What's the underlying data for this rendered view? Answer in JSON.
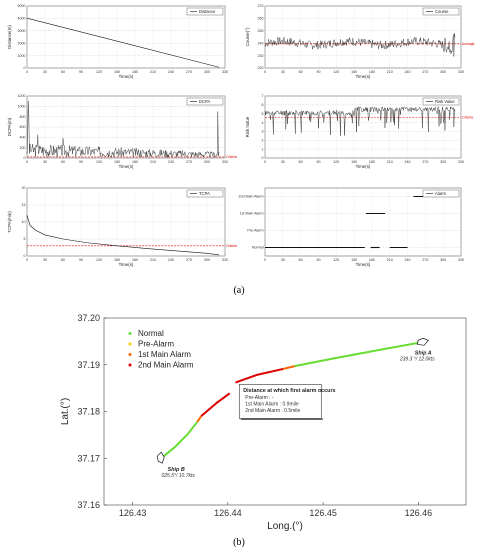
{
  "panel_labels": {
    "a": "(a)",
    "b": "(b)"
  },
  "chart_data": [
    {
      "id": "distance",
      "type": "line",
      "legend": "Distance",
      "xlabel": "Time(s)",
      "ylabel": "Distance(m)",
      "xlim": [
        0,
        330
      ],
      "ylim": [
        0,
        5000
      ],
      "xticks": [
        0,
        30,
        60,
        90,
        120,
        150,
        180,
        210,
        240,
        270,
        300,
        330
      ],
      "yticks": [
        0,
        1000,
        2000,
        3000,
        4000,
        5000
      ],
      "grid": true,
      "legend_position": "top-right",
      "series": [
        {
          "x": [
            0,
            320
          ],
          "y": [
            4020,
            60
          ]
        }
      ]
    },
    {
      "id": "course",
      "type": "line",
      "legend": "Course",
      "xlabel": "Time(s)",
      "ylabel": "Course(°)",
      "xlim": [
        0,
        330
      ],
      "ylim": [
        220,
        270
      ],
      "xticks": [
        0,
        30,
        60,
        90,
        120,
        150,
        180,
        210,
        240,
        270,
        300,
        330
      ],
      "yticks": [
        220,
        230,
        240,
        250,
        260,
        270
      ],
      "grid": true,
      "legend_position": "top-right",
      "threshold": {
        "y": 239.5,
        "label": "Average"
      },
      "noise": {
        "base": 240,
        "amp": 3.5,
        "seed": 7
      },
      "series": [
        {
          "x": [
            0,
            320
          ]
        }
      ]
    },
    {
      "id": "dcpa",
      "type": "line",
      "legend": "DCPA",
      "xlabel": "Time(s)",
      "ylabel": "DCPA(m)",
      "xlim": [
        0,
        330
      ],
      "ylim": [
        0,
        1200
      ],
      "xticks": [
        0,
        30,
        60,
        90,
        120,
        150,
        180,
        210,
        240,
        270,
        300,
        330
      ],
      "yticks": [
        0,
        200,
        400,
        600,
        800,
        1000,
        1200
      ],
      "grid": true,
      "legend_position": "top-right",
      "threshold": {
        "y": 20,
        "label": "Criteria"
      },
      "noise": {
        "base": 140,
        "amp": 120,
        "seed": 3,
        "spikes": [
          [
            2,
            1100
          ],
          [
            3,
            850
          ],
          [
            18,
            450
          ],
          [
            60,
            380
          ],
          [
            318,
            900
          ]
        ]
      },
      "series": [
        {
          "x": [
            0,
            320
          ]
        }
      ]
    },
    {
      "id": "risk",
      "type": "line",
      "legend": "Risk Value",
      "xlabel": "Time(s)",
      "ylabel": "Risk Value",
      "xlim": [
        0,
        330
      ],
      "ylim": [
        0,
        7
      ],
      "xticks": [
        0,
        30,
        60,
        90,
        120,
        150,
        180,
        210,
        240,
        270,
        300,
        330
      ],
      "yticks": [
        0,
        1,
        2,
        3,
        4,
        5,
        6,
        7
      ],
      "grid": true,
      "legend_position": "top-right",
      "threshold": {
        "y": 4.6,
        "label": "Criteria"
      },
      "noise": {
        "base": 5.1,
        "amp": 0.3,
        "seed": 11,
        "drops": true
      },
      "series": [
        {
          "x": [
            0,
            320
          ]
        }
      ]
    },
    {
      "id": "tcpa",
      "type": "line",
      "legend": "TCPA",
      "xlabel": "Time(s)",
      "ylabel": "TCPA(min)",
      "xlim": [
        0,
        330
      ],
      "ylim": [
        0,
        20
      ],
      "xticks": [
        0,
        30,
        60,
        90,
        120,
        150,
        180,
        210,
        240,
        270,
        300,
        330
      ],
      "yticks": [
        0,
        5,
        10,
        15,
        20
      ],
      "grid": true,
      "legend_position": "top-right",
      "threshold": {
        "y": 3,
        "label": "Criteria"
      },
      "series": [
        {
          "x": [
            0,
            5,
            15,
            30,
            60,
            100,
            150,
            200,
            250,
            300,
            320
          ],
          "y": [
            12,
            9,
            7.5,
            6.2,
            5,
            3.9,
            3,
            2.2,
            1.5,
            0.8,
            0.3
          ]
        }
      ]
    },
    {
      "id": "alarm",
      "type": "line",
      "legend": "Alarm",
      "xlabel": "Time(s)",
      "xlim": [
        0,
        330
      ],
      "xticks": [
        0,
        30,
        60,
        90,
        120,
        150,
        180,
        210,
        240,
        270,
        300,
        330
      ],
      "categories": [
        "Normal",
        "Pre-Alarm",
        "1st Main Alarm",
        "2nd Main Alarm"
      ],
      "grid": true,
      "legend_position": "top-right",
      "segments": [
        {
          "level": 0,
          "x0": 0,
          "x1": 168
        },
        {
          "level": 0,
          "x0": 178,
          "x1": 193
        },
        {
          "level": 0,
          "x0": 210,
          "x1": 240
        },
        {
          "level": 2,
          "x0": 170,
          "x1": 202
        },
        {
          "level": 3,
          "x0": 250,
          "x1": 320
        }
      ]
    },
    {
      "id": "track",
      "type": "line",
      "xlabel": "Long.(°)",
      "ylabel": "Lat.(°)",
      "xlim": [
        126.427,
        126.465
      ],
      "ylim": [
        37.16,
        37.2
      ],
      "xticks": [
        126.43,
        126.44,
        126.45,
        126.46
      ],
      "yticks": [
        37.16,
        37.17,
        37.18,
        37.19,
        37.2
      ],
      "legend_position": "top-left",
      "legend": [
        {
          "name": "Normal",
          "color": "#66dd33"
        },
        {
          "name": "Pre-Alarm",
          "color": "#ffcc00"
        },
        {
          "name": "1st Main Alarm",
          "color": "#ff6600"
        },
        {
          "name": "2nd Main Alarm",
          "color": "#dd0000"
        }
      ],
      "ship_b": {
        "name": "Ship B",
        "info": "025.5°/ 10.7kts",
        "segments": [
          {
            "color": "#66dd33",
            "x": [
              126.4329,
              126.4345,
              126.4358,
              126.4368
            ],
            "y": [
              37.1698,
              37.1725,
              37.1752,
              37.1778
            ]
          },
          {
            "color": "#ff6600",
            "x": [
              126.4368,
              126.4372
            ],
            "y": [
              37.1778,
              37.179
            ]
          },
          {
            "color": "#dd0000",
            "x": [
              126.4372,
              126.4388,
              126.4402
            ],
            "y": [
              37.179,
              37.1818,
              37.1839
            ]
          }
        ]
      },
      "ship_a": {
        "name": "Ship A",
        "info": "239.3 °/ 12.0kts",
        "segments": [
          {
            "color": "#66dd33",
            "x": [
              126.4603,
              126.456,
              126.451,
              126.447
            ],
            "y": [
              37.1948,
              37.1932,
              37.1913,
              37.1897
            ]
          },
          {
            "color": "#ff6600",
            "x": [
              126.447,
              126.4458
            ],
            "y": [
              37.1897,
              37.1891
            ]
          },
          {
            "color": "#dd0000",
            "x": [
              126.4458,
              126.443,
              126.4408
            ],
            "y": [
              37.1891,
              37.1878,
              37.1862
            ]
          }
        ]
      },
      "annotation": {
        "title": "Distance at which first alarm occurs",
        "lines": [
          "Pre-Alarm : -",
          "1st Main Alarm : 0.9mile",
          "2nd Main Alarm : 0.5mile"
        ]
      }
    }
  ]
}
